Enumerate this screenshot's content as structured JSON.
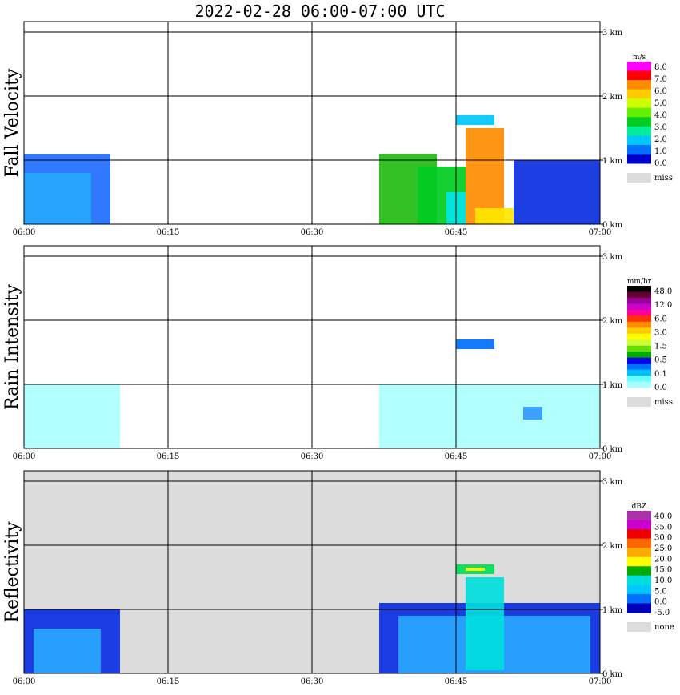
{
  "title": "2022-02-28  06:00-07:00 UTC",
  "chart_data": [
    {
      "type": "heatmap",
      "title": "Fall Velocity",
      "ylabel": "Fall Velocity",
      "x_ticks": [
        "06:00",
        "06:15",
        "06:30",
        "06:45",
        "07:00"
      ],
      "y_ticks": [
        "0 km",
        "1 km",
        "2 km",
        "3 km"
      ],
      "xlim": [
        "06:00",
        "07:00"
      ],
      "ylim_km": [
        0,
        3.1
      ],
      "grid": true,
      "colorbar": {
        "unit": "m/s",
        "labels": [
          "8.0",
          "7.0",
          "6.0",
          "5.0",
          "4.0",
          "3.0",
          "2.0",
          "1.0",
          "0.0"
        ],
        "colors": [
          "#ff00ff",
          "#ff0000",
          "#ff8c00",
          "#ffcc00",
          "#ccff00",
          "#66ee00",
          "#00cc22",
          "#00ee99",
          "#00c8ff",
          "#0070ff",
          "#0000cc"
        ],
        "missing_label": "miss"
      },
      "echoes": [
        {
          "t0": "06:00",
          "t1": "06:09",
          "h0": 0,
          "h1": 1.1,
          "color": "#1e6cff"
        },
        {
          "t0": "06:00",
          "t1": "06:07",
          "h0": 0,
          "h1": 0.8,
          "color": "#28a8ff"
        },
        {
          "t0": "06:37",
          "t1": "06:43",
          "h0": 0,
          "h1": 1.1,
          "color": "#22bb11"
        },
        {
          "t0": "06:41",
          "t1": "06:46",
          "h0": 0,
          "h1": 0.9,
          "color": "#00cc22"
        },
        {
          "t0": "06:44",
          "t1": "06:46",
          "h0": 0,
          "h1": 0.5,
          "color": "#00e5e5"
        },
        {
          "t0": "06:46",
          "t1": "06:50",
          "h0": 0,
          "h1": 1.5,
          "color": "#ff8c00"
        },
        {
          "t0": "06:47",
          "t1": "06:51",
          "h0": 0,
          "h1": 0.25,
          "color": "#ffe600"
        },
        {
          "t0": "06:51",
          "t1": "07:00",
          "h0": 0,
          "h1": 1.0,
          "color": "#0a2ee0"
        },
        {
          "t0": "06:45",
          "t1": "06:49",
          "h0": 1.55,
          "h1": 1.7,
          "color": "#00c8ff"
        }
      ]
    },
    {
      "type": "heatmap",
      "title": "Rain Intensity",
      "ylabel": "Rain Intensity",
      "x_ticks": [
        "06:00",
        "06:15",
        "06:30",
        "06:45",
        "07:00"
      ],
      "y_ticks": [
        "0 km",
        "1 km",
        "2 km",
        "3 km"
      ],
      "xlim": [
        "06:00",
        "07:00"
      ],
      "ylim_km": [
        0,
        3.1
      ],
      "grid": true,
      "colorbar": {
        "unit": "mm/hr",
        "labels": [
          "48.0",
          "12.0",
          "6.0",
          "3.0",
          "1.5",
          "0.5",
          "0.1",
          "0.0"
        ],
        "colors": [
          "#000000",
          "#660033",
          "#990099",
          "#cc00cc",
          "#ff0099",
          "#ff3300",
          "#ff8c00",
          "#ffcc00",
          "#ffff00",
          "#ccff33",
          "#66dd00",
          "#00aa00",
          "#0000ee",
          "#0070ff",
          "#00bfff",
          "#66ffff",
          "#aaffff"
        ],
        "missing_label": "miss"
      },
      "echoes": [
        {
          "t0": "06:00",
          "t1": "06:10",
          "h0": 0,
          "h1": 1.0,
          "color": "#aaffff"
        },
        {
          "t0": "06:37",
          "t1": "07:00",
          "h0": 0,
          "h1": 1.0,
          "color": "#aaffff"
        },
        {
          "t0": "06:45",
          "t1": "06:49",
          "h0": 1.55,
          "h1": 1.7,
          "color": "#0070ff"
        },
        {
          "t0": "06:52",
          "t1": "06:54",
          "h0": 0.45,
          "h1": 0.65,
          "color": "#3399ff"
        }
      ]
    },
    {
      "type": "heatmap",
      "title": "Reflectivity",
      "ylabel": "Reflectivity",
      "x_ticks": [
        "06:00",
        "06:15",
        "06:30",
        "06:45",
        "07:00"
      ],
      "y_ticks": [
        "0 km",
        "1 km",
        "2 km",
        "3 km"
      ],
      "xlim": [
        "06:00",
        "07:00"
      ],
      "ylim_km": [
        0,
        3.1
      ],
      "grid": true,
      "background": "#dcdcdc",
      "colorbar": {
        "unit": "dBZ",
        "labels": [
          "40.0",
          "35.0",
          "30.0",
          "25.0",
          "20.0",
          "15.0",
          "10.0",
          "5.0",
          "0.0",
          "-5.0"
        ],
        "colors": [
          "#aa33aa",
          "#cc00cc",
          "#ee0000",
          "#ff6600",
          "#ffaa00",
          "#ffff00",
          "#00aa00",
          "#00dddd",
          "#00c8ff",
          "#0070ff",
          "#0000bb"
        ],
        "missing_label": "none"
      },
      "echoes": [
        {
          "t0": "06:00",
          "t1": "06:10",
          "h0": 0,
          "h1": 1.0,
          "color": "#0a2ee0"
        },
        {
          "t0": "06:01",
          "t1": "06:08",
          "h0": 0,
          "h1": 0.7,
          "color": "#29a8ff"
        },
        {
          "t0": "06:37",
          "t1": "07:00",
          "h0": 0,
          "h1": 1.1,
          "color": "#0a2ee0"
        },
        {
          "t0": "06:39",
          "t1": "06:59",
          "h0": 0,
          "h1": 0.9,
          "color": "#29a8ff"
        },
        {
          "t0": "06:46",
          "t1": "06:50",
          "h0": 0.05,
          "h1": 1.5,
          "color": "#00dddd"
        },
        {
          "t0": "06:45",
          "t1": "06:49",
          "h0": 1.55,
          "h1": 1.7,
          "color": "#00dd55"
        },
        {
          "t0": "06:46",
          "t1": "06:48",
          "h0": 1.6,
          "h1": 1.65,
          "color": "#ffff00"
        }
      ]
    }
  ]
}
